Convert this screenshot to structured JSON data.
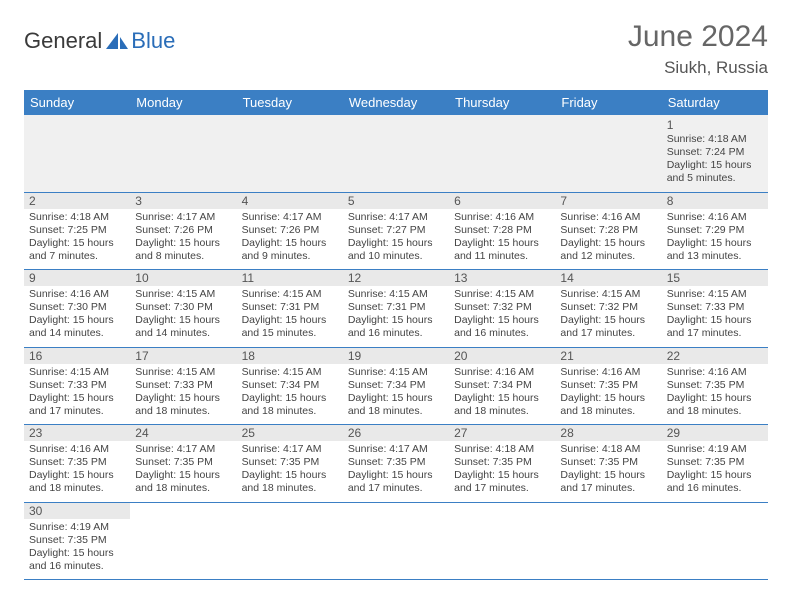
{
  "brand": {
    "part1": "General",
    "part2": "Blue",
    "accent_color": "#2a6db8"
  },
  "title": "June 2024",
  "location": "Siukh, Russia",
  "header_bg": "#3b7fc4",
  "days_of_week": [
    "Sunday",
    "Monday",
    "Tuesday",
    "Wednesday",
    "Thursday",
    "Friday",
    "Saturday"
  ],
  "weeks": [
    [
      null,
      null,
      null,
      null,
      null,
      null,
      {
        "n": "1",
        "sunrise": "4:18 AM",
        "sunset": "7:24 PM",
        "daylight": "15 hours and 5 minutes."
      }
    ],
    [
      {
        "n": "2",
        "sunrise": "4:18 AM",
        "sunset": "7:25 PM",
        "daylight": "15 hours and 7 minutes."
      },
      {
        "n": "3",
        "sunrise": "4:17 AM",
        "sunset": "7:26 PM",
        "daylight": "15 hours and 8 minutes."
      },
      {
        "n": "4",
        "sunrise": "4:17 AM",
        "sunset": "7:26 PM",
        "daylight": "15 hours and 9 minutes."
      },
      {
        "n": "5",
        "sunrise": "4:17 AM",
        "sunset": "7:27 PM",
        "daylight": "15 hours and 10 minutes."
      },
      {
        "n": "6",
        "sunrise": "4:16 AM",
        "sunset": "7:28 PM",
        "daylight": "15 hours and 11 minutes."
      },
      {
        "n": "7",
        "sunrise": "4:16 AM",
        "sunset": "7:28 PM",
        "daylight": "15 hours and 12 minutes."
      },
      {
        "n": "8",
        "sunrise": "4:16 AM",
        "sunset": "7:29 PM",
        "daylight": "15 hours and 13 minutes."
      }
    ],
    [
      {
        "n": "9",
        "sunrise": "4:16 AM",
        "sunset": "7:30 PM",
        "daylight": "15 hours and 14 minutes."
      },
      {
        "n": "10",
        "sunrise": "4:15 AM",
        "sunset": "7:30 PM",
        "daylight": "15 hours and 14 minutes."
      },
      {
        "n": "11",
        "sunrise": "4:15 AM",
        "sunset": "7:31 PM",
        "daylight": "15 hours and 15 minutes."
      },
      {
        "n": "12",
        "sunrise": "4:15 AM",
        "sunset": "7:31 PM",
        "daylight": "15 hours and 16 minutes."
      },
      {
        "n": "13",
        "sunrise": "4:15 AM",
        "sunset": "7:32 PM",
        "daylight": "15 hours and 16 minutes."
      },
      {
        "n": "14",
        "sunrise": "4:15 AM",
        "sunset": "7:32 PM",
        "daylight": "15 hours and 17 minutes."
      },
      {
        "n": "15",
        "sunrise": "4:15 AM",
        "sunset": "7:33 PM",
        "daylight": "15 hours and 17 minutes."
      }
    ],
    [
      {
        "n": "16",
        "sunrise": "4:15 AM",
        "sunset": "7:33 PM",
        "daylight": "15 hours and 17 minutes."
      },
      {
        "n": "17",
        "sunrise": "4:15 AM",
        "sunset": "7:33 PM",
        "daylight": "15 hours and 18 minutes."
      },
      {
        "n": "18",
        "sunrise": "4:15 AM",
        "sunset": "7:34 PM",
        "daylight": "15 hours and 18 minutes."
      },
      {
        "n": "19",
        "sunrise": "4:15 AM",
        "sunset": "7:34 PM",
        "daylight": "15 hours and 18 minutes."
      },
      {
        "n": "20",
        "sunrise": "4:16 AM",
        "sunset": "7:34 PM",
        "daylight": "15 hours and 18 minutes."
      },
      {
        "n": "21",
        "sunrise": "4:16 AM",
        "sunset": "7:35 PM",
        "daylight": "15 hours and 18 minutes."
      },
      {
        "n": "22",
        "sunrise": "4:16 AM",
        "sunset": "7:35 PM",
        "daylight": "15 hours and 18 minutes."
      }
    ],
    [
      {
        "n": "23",
        "sunrise": "4:16 AM",
        "sunset": "7:35 PM",
        "daylight": "15 hours and 18 minutes."
      },
      {
        "n": "24",
        "sunrise": "4:17 AM",
        "sunset": "7:35 PM",
        "daylight": "15 hours and 18 minutes."
      },
      {
        "n": "25",
        "sunrise": "4:17 AM",
        "sunset": "7:35 PM",
        "daylight": "15 hours and 18 minutes."
      },
      {
        "n": "26",
        "sunrise": "4:17 AM",
        "sunset": "7:35 PM",
        "daylight": "15 hours and 17 minutes."
      },
      {
        "n": "27",
        "sunrise": "4:18 AM",
        "sunset": "7:35 PM",
        "daylight": "15 hours and 17 minutes."
      },
      {
        "n": "28",
        "sunrise": "4:18 AM",
        "sunset": "7:35 PM",
        "daylight": "15 hours and 17 minutes."
      },
      {
        "n": "29",
        "sunrise": "4:19 AM",
        "sunset": "7:35 PM",
        "daylight": "15 hours and 16 minutes."
      }
    ],
    [
      {
        "n": "30",
        "sunrise": "4:19 AM",
        "sunset": "7:35 PM",
        "daylight": "15 hours and 16 minutes."
      },
      null,
      null,
      null,
      null,
      null,
      null
    ]
  ],
  "labels": {
    "sunrise": "Sunrise:",
    "sunset": "Sunset:",
    "daylight": "Daylight:"
  }
}
